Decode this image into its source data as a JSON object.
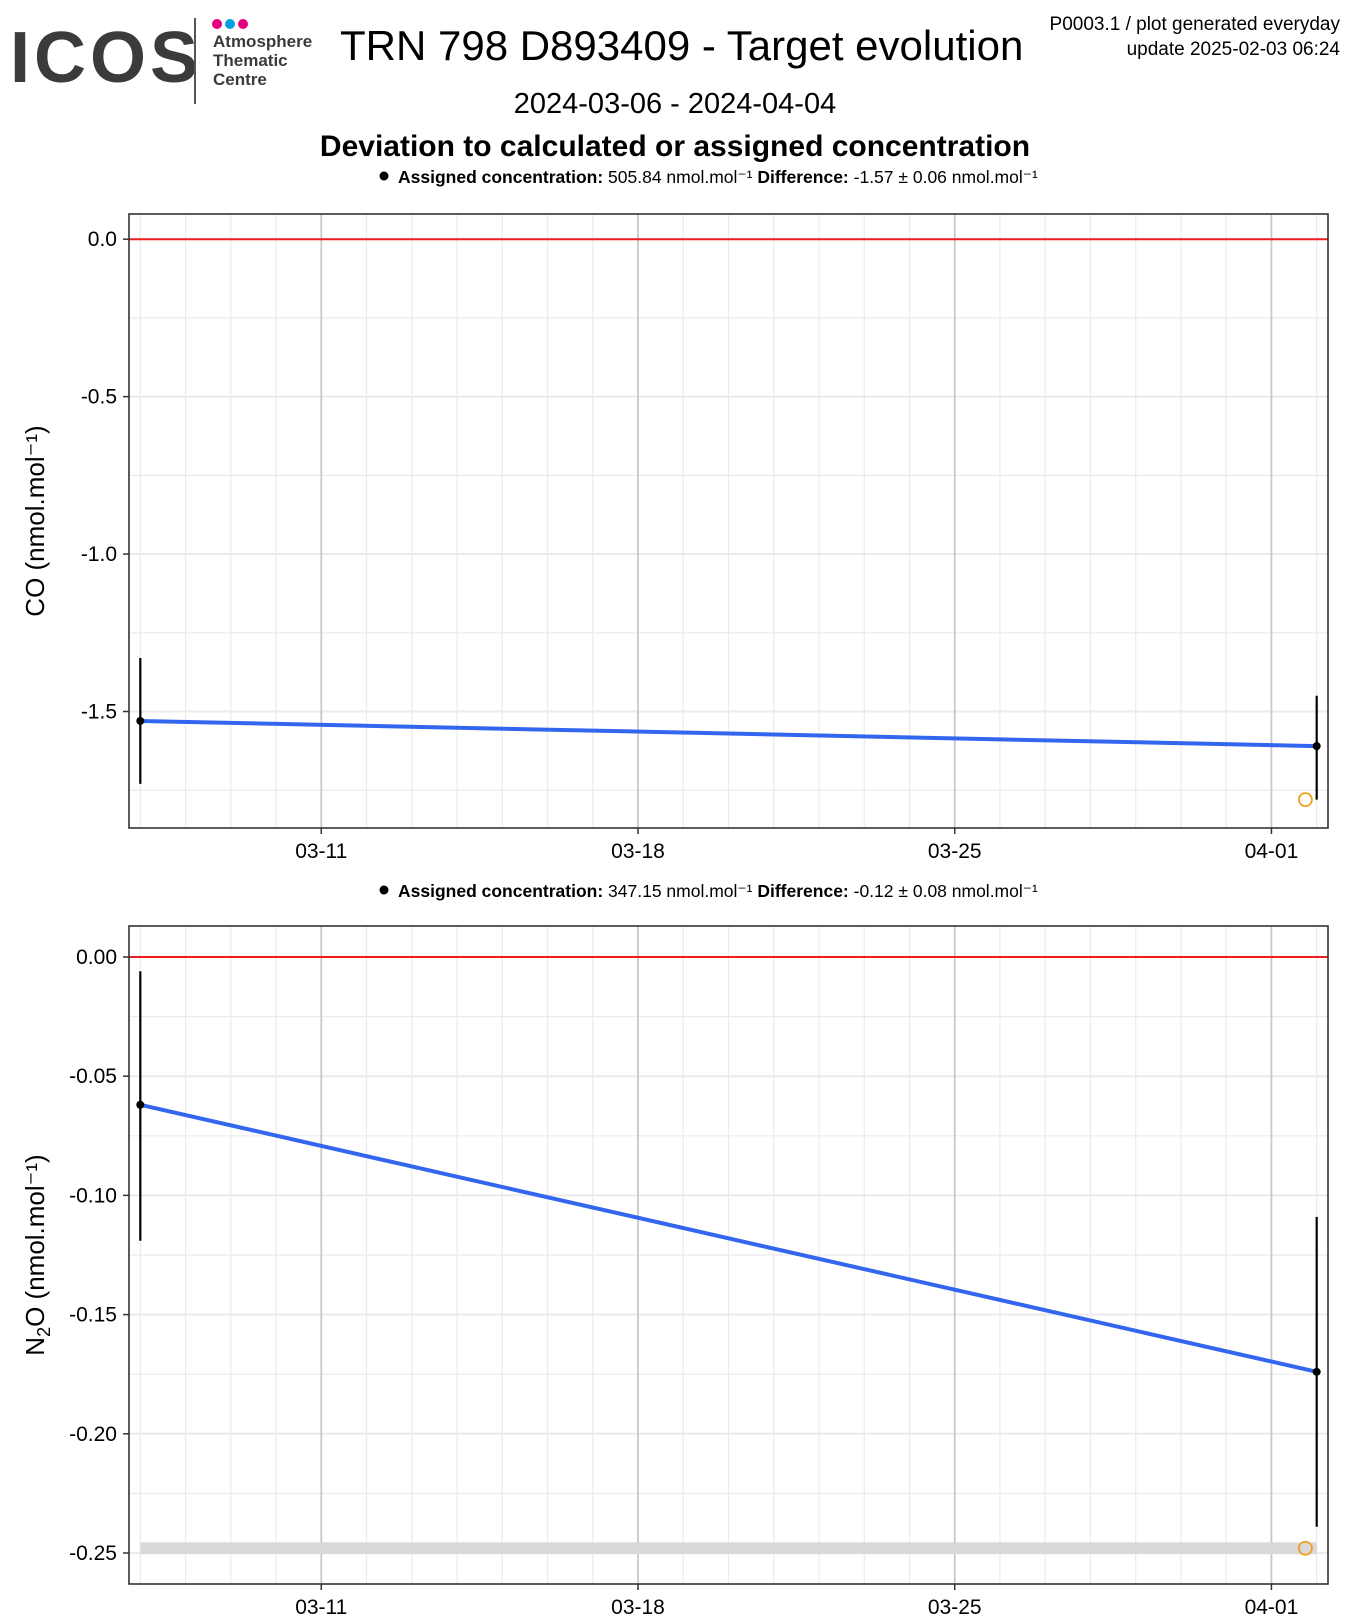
{
  "header": {
    "logo_wordmark": "ICOS",
    "logo_lines": [
      "Atmosphere",
      "Thematic",
      "Centre"
    ],
    "logo_dot_colors": [
      "#e5007e",
      "#00a0e3",
      "#e5007e"
    ],
    "title": "TRN 798 D893409 - Target evolution",
    "meta_line1": "P0003.1 / plot generated everyday",
    "meta_line2": "update  2025-02-03 06:24",
    "date_range": "2024-03-06 - 2024-04-04",
    "subtitle": "Deviation to calculated or assigned concentration"
  },
  "colors": {
    "line": "#3366ee",
    "reference": "#ee1c1c",
    "point": "#000000",
    "open_point": "#f0a020",
    "band": "#d9d9d9",
    "grid_major": "#c8c8c8",
    "grid_minor": "#ebebeb"
  },
  "chart_data": [
    {
      "type": "line",
      "gas": "CO",
      "ylabel": "CO (nmol.mol⁻¹)",
      "legend": {
        "assigned_label": "Assigned concentration:",
        "assigned_value": "505.84 nmol.mol⁻¹",
        "difference_label": "Difference:",
        "difference_value": "-1.57 ± 0.06 nmol.mol⁻¹"
      },
      "x_ticks": [
        "03-11",
        "03-18",
        "03-25",
        "04-01"
      ],
      "xlim": [
        "2024-03-06T18:00",
        "2024-04-02T06:00"
      ],
      "ylim": [
        -1.87,
        0.08
      ],
      "y_ticks": [
        0.0,
        -0.5,
        -1.0,
        -1.5
      ],
      "y_tick_labels": [
        "0.0",
        "-0.5",
        "-1.0",
        "-1.5"
      ],
      "reference_y": 0.0,
      "series": [
        {
          "x": [
            "2024-03-07",
            "2024-04-02"
          ],
          "y": [
            -1.53,
            -1.61
          ],
          "error_low": [
            -1.73,
            -1.78
          ],
          "error_high": [
            -1.33,
            -1.45
          ]
        }
      ],
      "open_points": [
        {
          "x": "2024-04-01T18:00",
          "y": -1.78
        }
      ],
      "band": null
    },
    {
      "type": "line",
      "gas": "N2O",
      "ylabel_main": "N",
      "ylabel_sub": "2",
      "ylabel_rest": "O (nmol.mol⁻¹)",
      "legend": {
        "assigned_label": "Assigned concentration:",
        "assigned_value": "347.15 nmol.mol⁻¹",
        "difference_label": "Difference:",
        "difference_value": "-0.12 ± 0.08 nmol.mol⁻¹"
      },
      "x_ticks": [
        "03-11",
        "03-18",
        "03-25",
        "04-01"
      ],
      "xlim": [
        "2024-03-06T18:00",
        "2024-04-02T06:00"
      ],
      "ylim": [
        -0.263,
        0.013
      ],
      "y_ticks": [
        0.0,
        -0.05,
        -0.1,
        -0.15,
        -0.2,
        -0.25
      ],
      "y_tick_labels": [
        "0.00",
        "-0.05",
        "-0.10",
        "-0.15",
        "-0.20",
        "-0.25"
      ],
      "reference_y": 0.0,
      "series": [
        {
          "x": [
            "2024-03-07",
            "2024-04-02"
          ],
          "y": [
            -0.062,
            -0.174
          ],
          "error_low": [
            -0.119,
            -0.239
          ],
          "error_high": [
            -0.006,
            -0.109
          ]
        }
      ],
      "open_points": [
        {
          "x": "2024-04-01T18:00",
          "y": -0.248
        }
      ],
      "band": {
        "x": [
          "2024-03-07",
          "2024-04-02"
        ],
        "y": [
          -0.2505,
          -0.2455
        ]
      }
    }
  ]
}
